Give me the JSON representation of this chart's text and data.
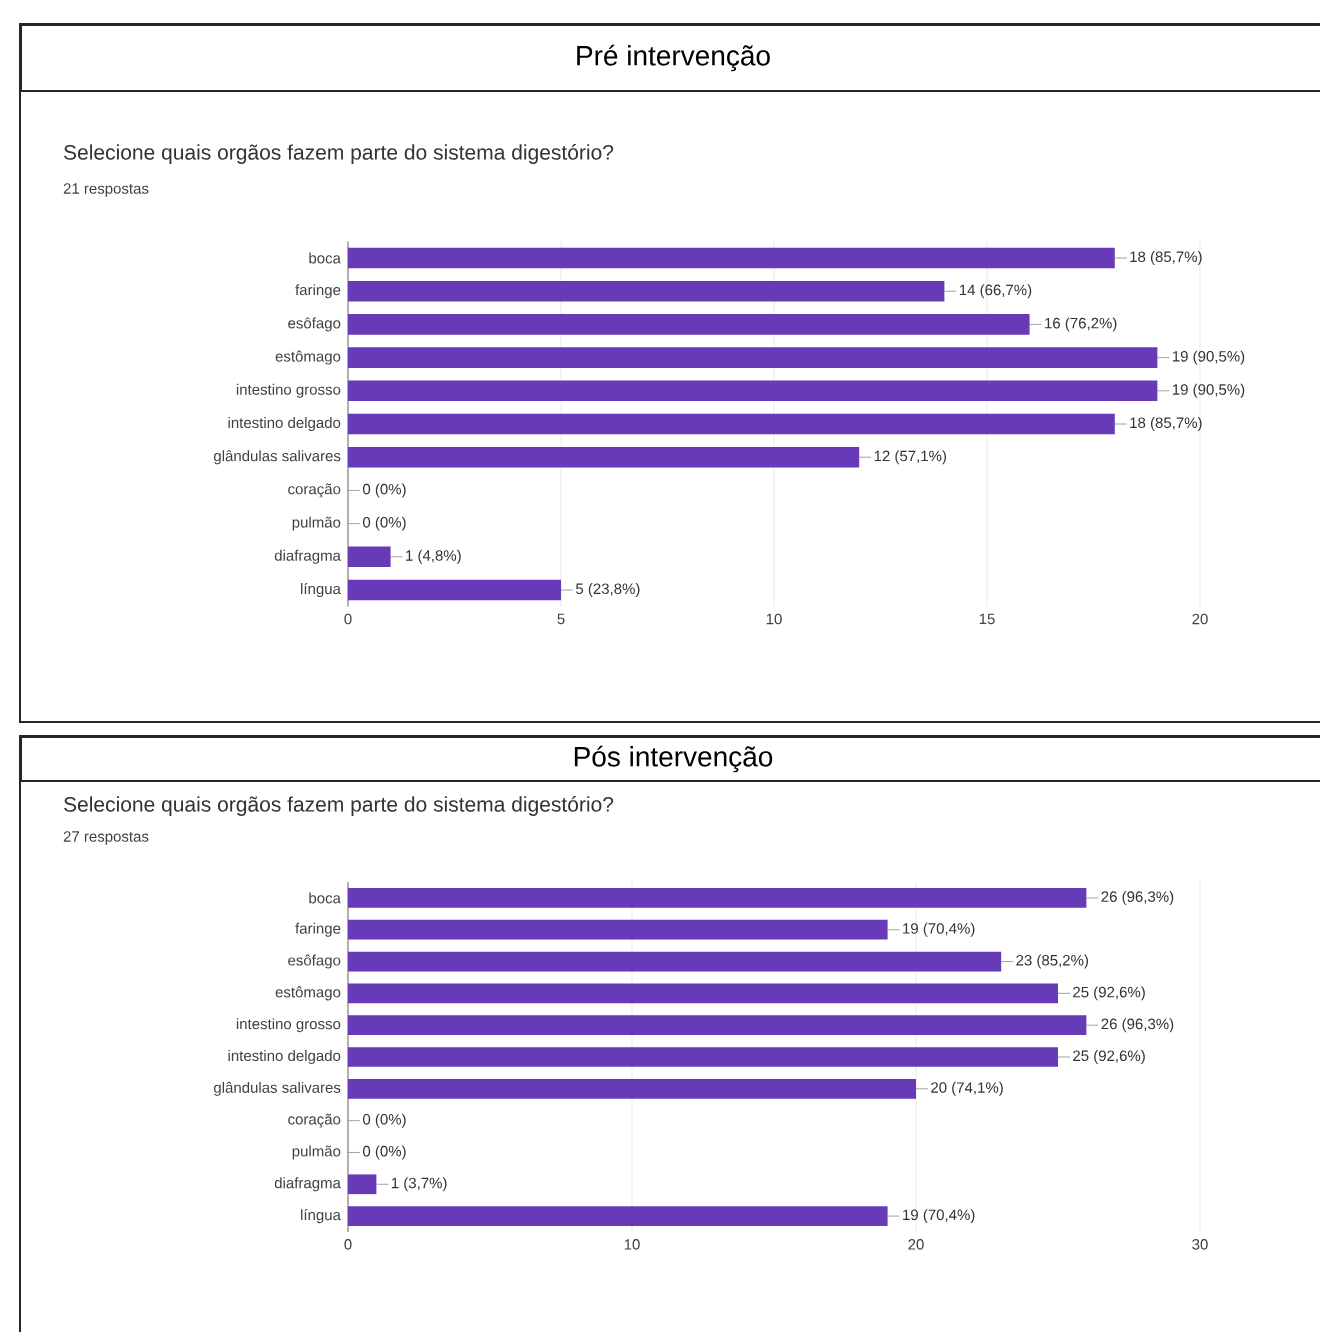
{
  "chart_data": [
    {
      "type": "bar",
      "orientation": "horizontal",
      "title": "Pré intervenção",
      "subtitle": "Selecione quais orgãos fazem parte do sistema digestório?",
      "annotations": [
        "21 respostas"
      ],
      "categories": [
        "boca",
        "faringe",
        "esôfago",
        "estômago",
        "intestino grosso",
        "intestino delgado",
        "glândulas salivares",
        "coração",
        "pulmão",
        "diafragma",
        "língua"
      ],
      "values": [
        18,
        14,
        16,
        19,
        19,
        18,
        12,
        0,
        0,
        1,
        5
      ],
      "value_labels": [
        "18 (85,7%)",
        "14 (66,7%)",
        "16 (76,2%)",
        "19 (90,5%)",
        "19 (90,5%)",
        "18 (85,7%)",
        "12 (57,1%)",
        "0 (0%)",
        "0 (0%)",
        "1 (4,8%)",
        "5 (23,8%)"
      ],
      "color": "#673ab7",
      "xlim": [
        0,
        20
      ],
      "xticks": [
        0,
        5,
        10,
        15,
        20
      ],
      "grid": "x"
    },
    {
      "type": "bar",
      "orientation": "horizontal",
      "title": "Pós intervenção",
      "subtitle": "Selecione quais orgãos fazem parte do sistema digestório?",
      "annotations": [
        "27 respostas"
      ],
      "categories": [
        "boca",
        "faringe",
        "esôfago",
        "estômago",
        "intestino grosso",
        "intestino delgado",
        "glândulas salivares",
        "coração",
        "pulmão",
        "diafragma",
        "língua"
      ],
      "values": [
        26,
        19,
        23,
        25,
        26,
        25,
        20,
        0,
        0,
        1,
        19
      ],
      "value_labels": [
        "26 (96,3%)",
        "19 (70,4%)",
        "23 (85,2%)",
        "25 (92,6%)",
        "26 (96,3%)",
        "25 (92,6%)",
        "20 (74,1%)",
        "0 (0%)",
        "0 (0%)",
        "1 (3,7%)",
        "19 (70,4%)"
      ],
      "color": "#673ab7",
      "xlim": [
        0,
        30
      ],
      "xticks": [
        0,
        10,
        20,
        30
      ],
      "grid": "x"
    }
  ]
}
